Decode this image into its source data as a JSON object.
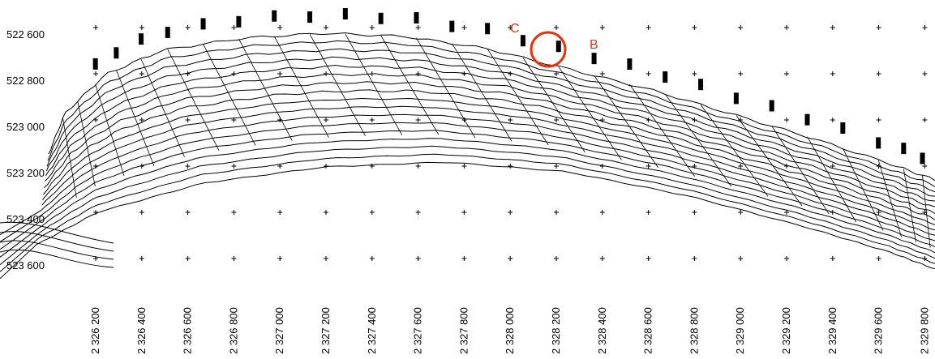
{
  "y_labels": [
    "522 600",
    "522 800",
    "523 000",
    "523 200",
    "523 400",
    "523 600"
  ],
  "x_labels": [
    "2 326 200",
    "2 326 400",
    "2 326 600",
    "2 326 800",
    "2 327 000",
    "2 327 200",
    "2 327 400",
    "2 327 600",
    "2 327 800",
    "2 328 000",
    "2 328 200",
    "2 328 400",
    "2 328 600",
    "2 328 800",
    "2 329 000",
    "2 329 200",
    "2 329 400",
    "2 329 600",
    "2 329 800"
  ],
  "annotations": {
    "c": "C",
    "b": "B"
  }
}
